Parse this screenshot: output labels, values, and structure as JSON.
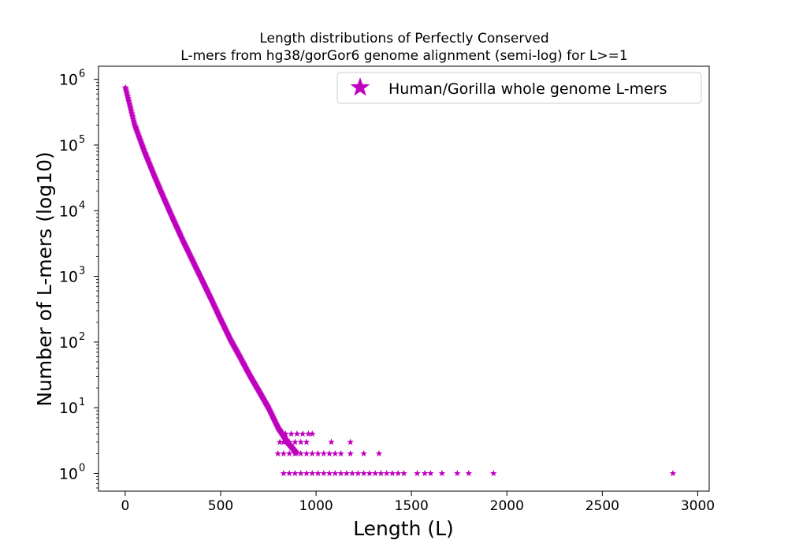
{
  "chart_data": {
    "type": "scatter",
    "title_lines": [
      "Length distributions of Perfectly Conserved",
      "L-mers from hg38/gorGor6 genome alignment (semi-log) for L>=1"
    ],
    "xlabel": "Length (L)",
    "ylabel": "Number of L-mers (log10)",
    "xlim": [
      -140,
      3060
    ],
    "ylim_log10": [
      -0.27,
      6.2
    ],
    "yscale": "log",
    "x_ticks": [
      0,
      500,
      1000,
      1500,
      2000,
      2500,
      3000
    ],
    "x_tick_labels": [
      "0",
      "500",
      "1000",
      "1500",
      "2000",
      "2500",
      "3000"
    ],
    "y_ticks_exponents": [
      0,
      1,
      2,
      3,
      4,
      5,
      6
    ],
    "y_tick_base": "10",
    "grid": false,
    "legend_position": "top-right",
    "series": [
      {
        "name": "Human/Gorilla whole genome L-mers",
        "color": "#bf00bf",
        "marker": "star",
        "trend_points": [
          [
            1,
            750000
          ],
          [
            50,
            200000
          ],
          [
            100,
            80000
          ],
          [
            150,
            35000
          ],
          [
            200,
            16000
          ],
          [
            250,
            7500
          ],
          [
            300,
            3600
          ],
          [
            350,
            1800
          ],
          [
            400,
            900
          ],
          [
            450,
            450
          ],
          [
            500,
            220
          ],
          [
            550,
            110
          ],
          [
            600,
            60
          ],
          [
            650,
            32
          ],
          [
            700,
            18
          ],
          [
            750,
            10
          ],
          [
            800,
            5
          ],
          [
            850,
            3
          ],
          [
            900,
            2
          ]
        ],
        "tail_points": [
          [
            840,
            4
          ],
          [
            870,
            4
          ],
          [
            900,
            4
          ],
          [
            930,
            4
          ],
          [
            960,
            4
          ],
          [
            980,
            4
          ],
          [
            810,
            3
          ],
          [
            830,
            3
          ],
          [
            860,
            3
          ],
          [
            890,
            3
          ],
          [
            920,
            3
          ],
          [
            950,
            3
          ],
          [
            1080,
            3
          ],
          [
            1180,
            3
          ],
          [
            800,
            2
          ],
          [
            830,
            2
          ],
          [
            860,
            2
          ],
          [
            890,
            2
          ],
          [
            920,
            2
          ],
          [
            950,
            2
          ],
          [
            980,
            2
          ],
          [
            1010,
            2
          ],
          [
            1040,
            2
          ],
          [
            1070,
            2
          ],
          [
            1100,
            2
          ],
          [
            1130,
            2
          ],
          [
            1180,
            2
          ],
          [
            1250,
            2
          ],
          [
            1330,
            2
          ],
          [
            830,
            1
          ],
          [
            860,
            1
          ],
          [
            890,
            1
          ],
          [
            920,
            1
          ],
          [
            950,
            1
          ],
          [
            980,
            1
          ],
          [
            1010,
            1
          ],
          [
            1040,
            1
          ],
          [
            1070,
            1
          ],
          [
            1100,
            1
          ],
          [
            1130,
            1
          ],
          [
            1160,
            1
          ],
          [
            1190,
            1
          ],
          [
            1220,
            1
          ],
          [
            1250,
            1
          ],
          [
            1280,
            1
          ],
          [
            1310,
            1
          ],
          [
            1340,
            1
          ],
          [
            1370,
            1
          ],
          [
            1400,
            1
          ],
          [
            1430,
            1
          ],
          [
            1460,
            1
          ],
          [
            1530,
            1
          ],
          [
            1570,
            1
          ],
          [
            1600,
            1
          ],
          [
            1660,
            1
          ],
          [
            1740,
            1
          ],
          [
            1800,
            1
          ],
          [
            1930,
            1
          ],
          [
            2870,
            1
          ]
        ]
      }
    ]
  }
}
